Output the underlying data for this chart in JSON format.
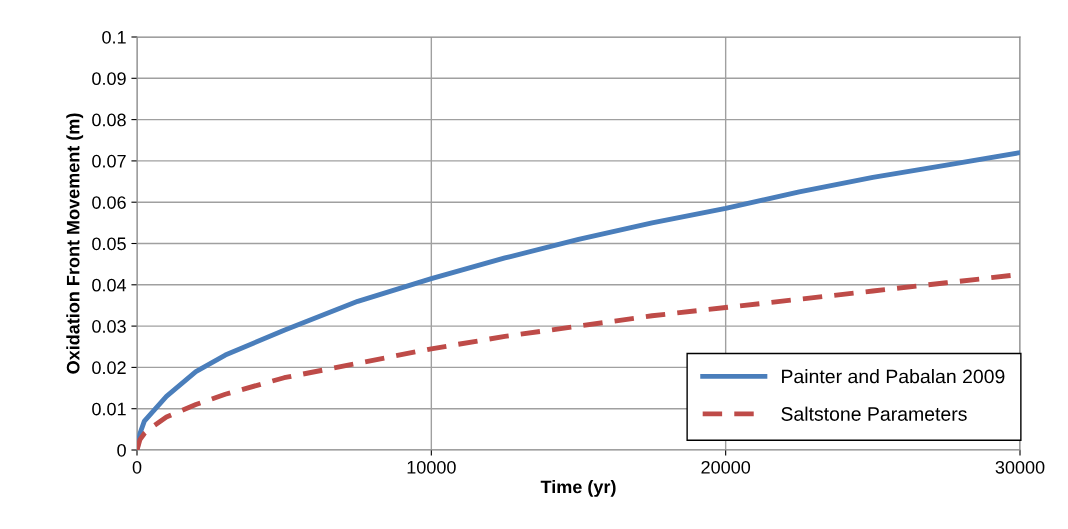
{
  "chart_data": {
    "type": "line",
    "xlabel": "Time (yr)",
    "ylabel": "Oxidation Front Movement (m)",
    "x": [
      0,
      100,
      250,
      500,
      1000,
      2000,
      3000,
      5000,
      7500,
      10000,
      12500,
      15000,
      17500,
      20000,
      22500,
      25000,
      27500,
      30000
    ],
    "series": [
      {
        "name": "Painter and Pabalan 2009",
        "color": "#4a7ebb",
        "line_style": "solid",
        "values": [
          0,
          0.004,
          0.007,
          0.009,
          0.013,
          0.019,
          0.023,
          0.029,
          0.036,
          0.0415,
          0.0465,
          0.051,
          0.055,
          0.0585,
          0.0625,
          0.066,
          0.069,
          0.072
        ]
      },
      {
        "name": "Saltstone Parameters",
        "color": "#be4b48",
        "line_style": "dashed",
        "values": [
          0,
          0.0025,
          0.004,
          0.0055,
          0.008,
          0.011,
          0.0135,
          0.0175,
          0.021,
          0.0245,
          0.0275,
          0.03,
          0.0325,
          0.0345,
          0.0365,
          0.0385,
          0.0405,
          0.0425
        ]
      }
    ],
    "xlim": [
      0,
      30000
    ],
    "xticks": [
      0,
      10000,
      20000,
      30000
    ],
    "ylim": [
      0,
      0.1
    ],
    "yticks": [
      {
        "value": 0,
        "label": "0"
      },
      0.01,
      0.02,
      0.03,
      0.04,
      0.05,
      0.06,
      0.07,
      0.08,
      0.09,
      0.1
    ],
    "grid": true,
    "legend": "bottom right",
    "marker": "none"
  }
}
